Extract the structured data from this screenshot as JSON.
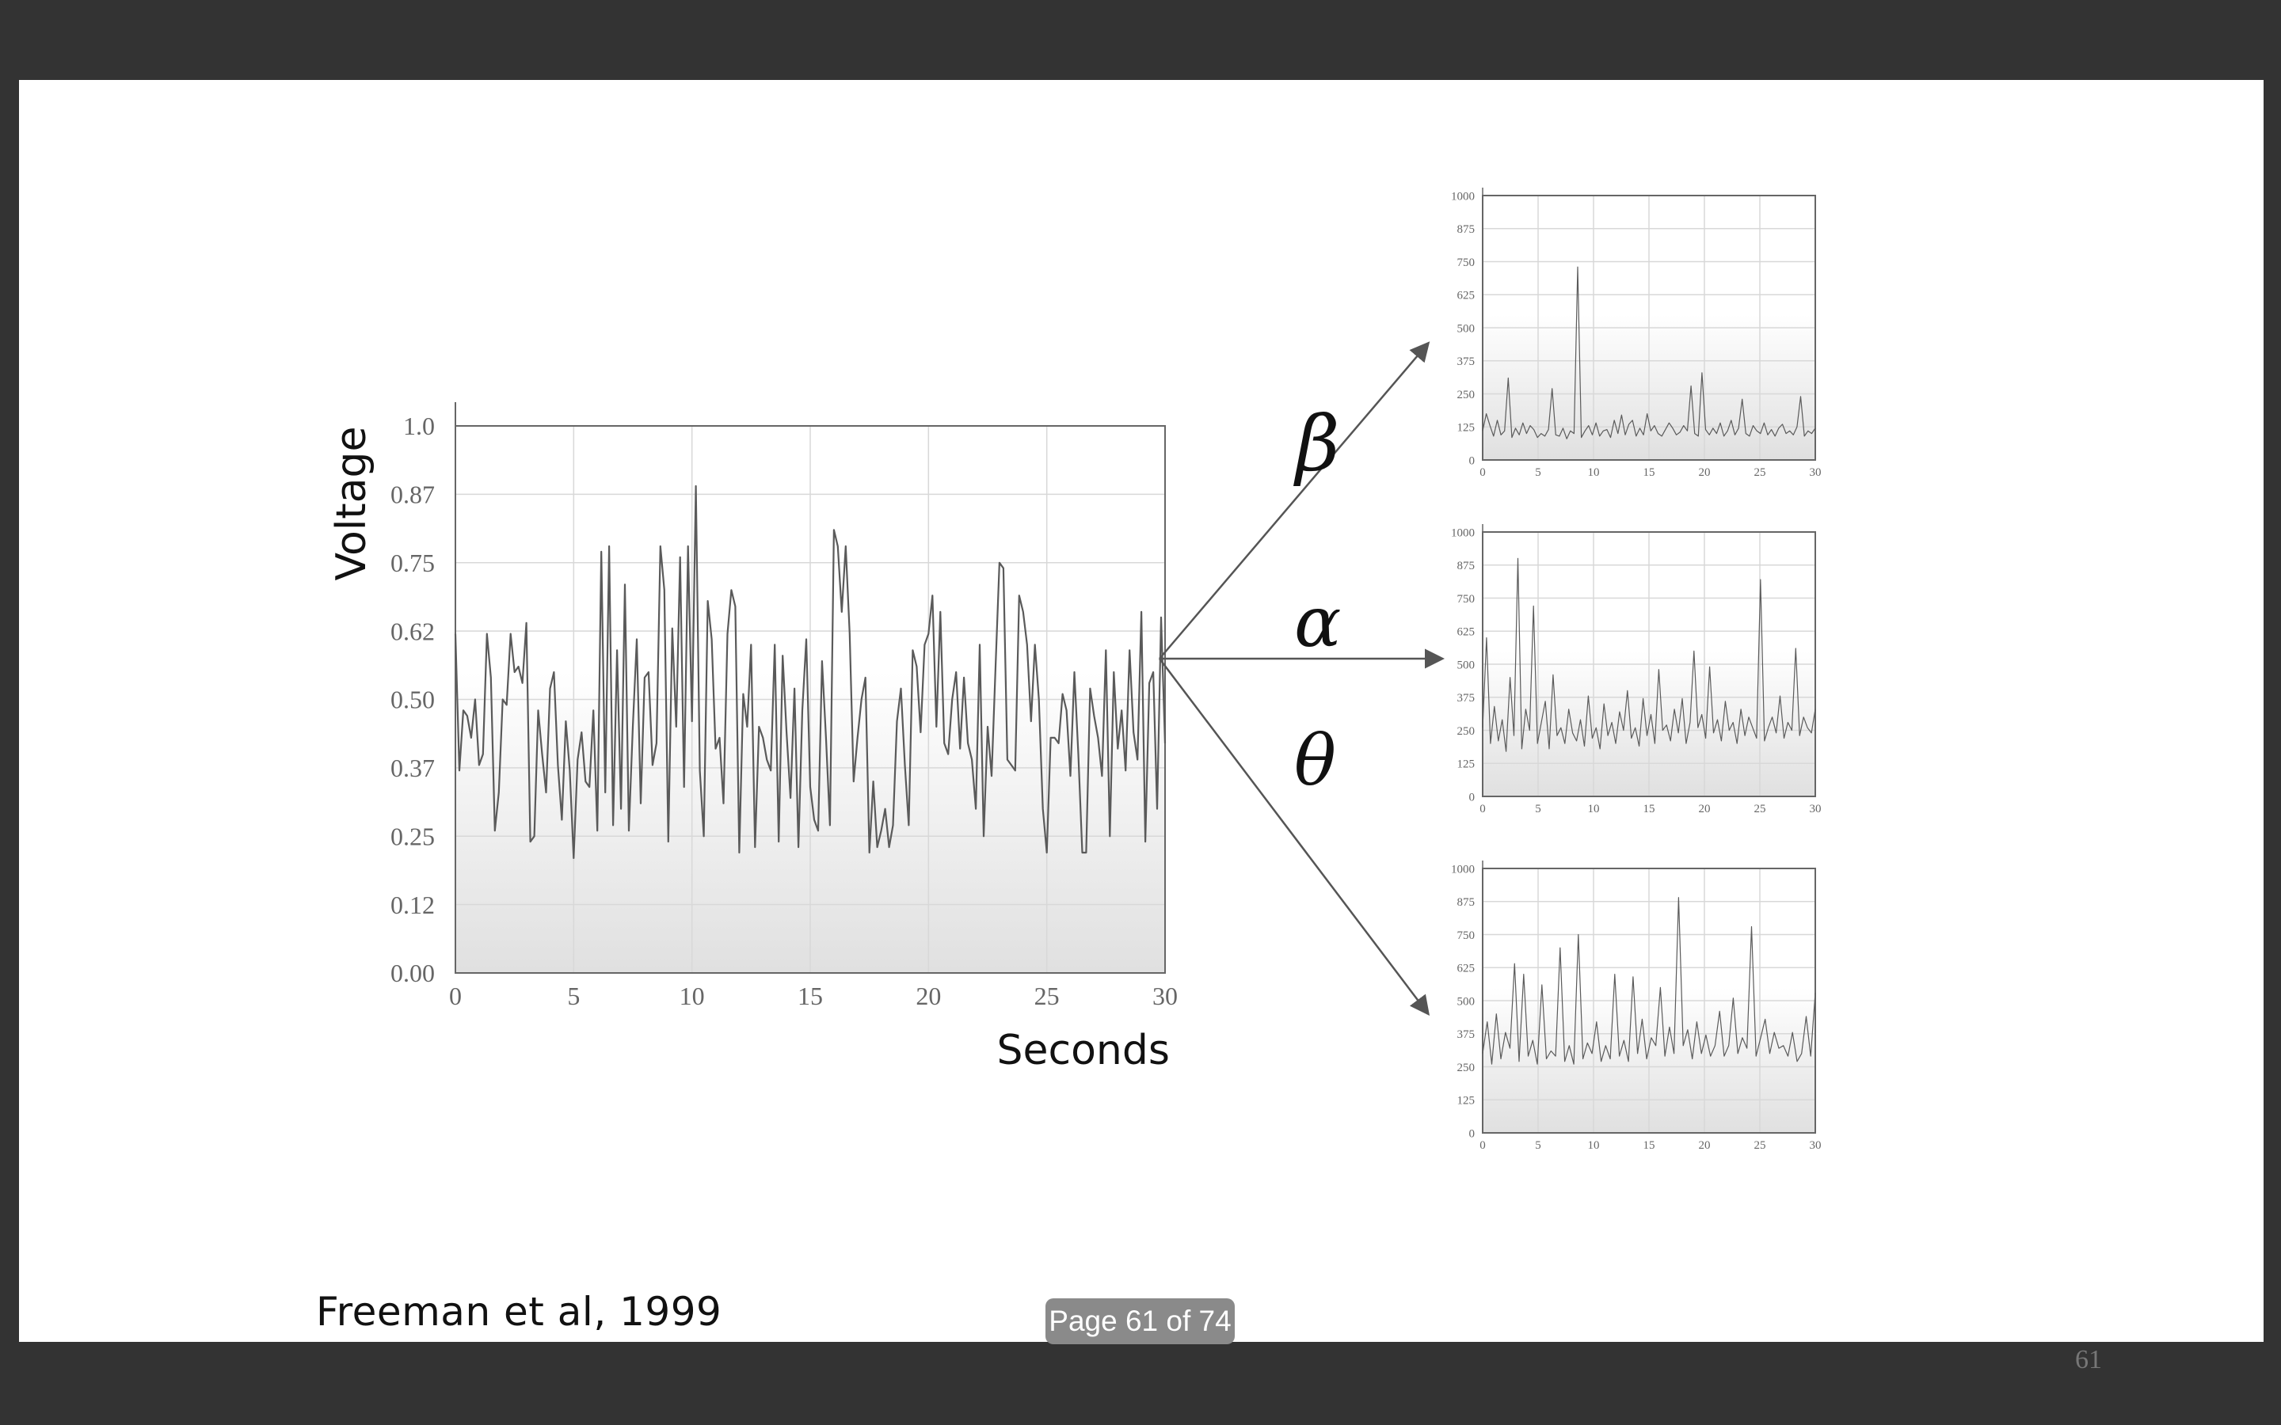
{
  "viewer": {
    "page_indicator": "Page 61 of 74"
  },
  "slide": {
    "citation": "Freeman et al, 1999",
    "page_number": "61",
    "band_labels": [
      "β",
      "α",
      "θ"
    ]
  },
  "colors": {
    "background": "#333333",
    "slide": "#ffffff",
    "line": "#5a5a5a",
    "grid": "#d6d6d6",
    "pill": "#8a8a8a"
  },
  "chart_data": [
    {
      "type": "line",
      "xlabel": "Seconds",
      "ylabel": "Voltage",
      "xlim": [
        0,
        30
      ],
      "ylim": [
        0,
        1.0
      ],
      "x_ticks": [
        "0",
        "5",
        "10",
        "15",
        "20",
        "25",
        "30"
      ],
      "y_ticks": [
        "0.00",
        "0.12",
        "0.25",
        "0.37",
        "0.50",
        "0.62",
        "0.75",
        "0.87",
        "1.0"
      ],
      "grid": true,
      "y": [
        0.62,
        0.37,
        0.48,
        0.47,
        0.43,
        0.5,
        0.38,
        0.4,
        0.62,
        0.54,
        0.26,
        0.33,
        0.5,
        0.49,
        0.62,
        0.55,
        0.56,
        0.53,
        0.64,
        0.24,
        0.25,
        0.48,
        0.4,
        0.33,
        0.52,
        0.55,
        0.38,
        0.28,
        0.46,
        0.37,
        0.21,
        0.39,
        0.44,
        0.35,
        0.34,
        0.48,
        0.26,
        0.77,
        0.33,
        0.78,
        0.27,
        0.59,
        0.3,
        0.71,
        0.26,
        0.45,
        0.61,
        0.31,
        0.54,
        0.55,
        0.38,
        0.42,
        0.78,
        0.7,
        0.24,
        0.63,
        0.45,
        0.76,
        0.34,
        0.78,
        0.46,
        0.89,
        0.37,
        0.25,
        0.68,
        0.61,
        0.41,
        0.43,
        0.31,
        0.62,
        0.7,
        0.67,
        0.22,
        0.51,
        0.45,
        0.6,
        0.23,
        0.45,
        0.43,
        0.39,
        0.37,
        0.6,
        0.24,
        0.58,
        0.44,
        0.32,
        0.52,
        0.23,
        0.48,
        0.61,
        0.34,
        0.28,
        0.26,
        0.57,
        0.43,
        0.27,
        0.81,
        0.78,
        0.66,
        0.78,
        0.62,
        0.35,
        0.43,
        0.5,
        0.54,
        0.22,
        0.35,
        0.23,
        0.26,
        0.3,
        0.23,
        0.27,
        0.46,
        0.52,
        0.38,
        0.27,
        0.59,
        0.56,
        0.44,
        0.6,
        0.62,
        0.69,
        0.45,
        0.66,
        0.42,
        0.4,
        0.5,
        0.55,
        0.41,
        0.54,
        0.42,
        0.39,
        0.3,
        0.6,
        0.25,
        0.45,
        0.36,
        0.56,
        0.75,
        0.74,
        0.39,
        0.38,
        0.37,
        0.69,
        0.66,
        0.6,
        0.46,
        0.6,
        0.5,
        0.3,
        0.22,
        0.43,
        0.43,
        0.42,
        0.51,
        0.48,
        0.36,
        0.55,
        0.4,
        0.22,
        0.22,
        0.52,
        0.47,
        0.43,
        0.36,
        0.59,
        0.25,
        0.55,
        0.41,
        0.48,
        0.37,
        0.59,
        0.44,
        0.39,
        0.66,
        0.24,
        0.53,
        0.55,
        0.3,
        0.65,
        0.42
      ]
    },
    {
      "type": "line",
      "label": "β",
      "xlim": [
        0,
        30
      ],
      "ylim": [
        0,
        1000
      ],
      "x_ticks": [
        "0",
        "5",
        "10",
        "15",
        "20",
        "25",
        "30"
      ],
      "y_ticks": [
        "0",
        "125",
        "250",
        "375",
        "500",
        "625",
        "750",
        "875",
        "1000"
      ],
      "grid": true,
      "y": [
        110,
        175,
        130,
        90,
        150,
        95,
        110,
        310,
        85,
        120,
        95,
        140,
        100,
        130,
        115,
        85,
        100,
        90,
        115,
        270,
        95,
        90,
        120,
        80,
        110,
        100,
        730,
        85,
        110,
        130,
        95,
        140,
        90,
        110,
        115,
        85,
        150,
        100,
        170,
        95,
        135,
        150,
        90,
        120,
        95,
        175,
        110,
        130,
        100,
        90,
        115,
        140,
        120,
        95,
        105,
        130,
        110,
        280,
        100,
        90,
        330,
        115,
        95,
        120,
        100,
        140,
        90,
        110,
        150,
        95,
        120,
        230,
        100,
        90,
        130,
        110,
        100,
        140,
        95,
        115,
        90,
        120,
        135,
        100,
        110,
        95,
        125,
        240,
        90,
        110,
        100,
        120
      ]
    },
    {
      "type": "line",
      "label": "α",
      "xlim": [
        0,
        30
      ],
      "ylim": [
        0,
        1000
      ],
      "x_ticks": [
        "0",
        "5",
        "10",
        "15",
        "20",
        "25",
        "30"
      ],
      "y_ticks": [
        "0",
        "125",
        "250",
        "375",
        "500",
        "625",
        "750",
        "875",
        "1000"
      ],
      "grid": true,
      "y": [
        260,
        600,
        200,
        340,
        210,
        290,
        170,
        450,
        230,
        900,
        180,
        330,
        250,
        720,
        200,
        280,
        360,
        180,
        460,
        230,
        260,
        200,
        330,
        240,
        210,
        290,
        190,
        380,
        220,
        260,
        180,
        350,
        230,
        280,
        200,
        320,
        250,
        400,
        220,
        260,
        190,
        370,
        230,
        310,
        200,
        480,
        250,
        270,
        210,
        330,
        240,
        370,
        200,
        280,
        550,
        260,
        310,
        220,
        490,
        240,
        290,
        210,
        360,
        250,
        280,
        200,
        330,
        230,
        300,
        260,
        220,
        820,
        210,
        260,
        300,
        240,
        380,
        220,
        280,
        250,
        560,
        230,
        300,
        260,
        240,
        330
      ]
    },
    {
      "type": "line",
      "label": "θ",
      "xlim": [
        0,
        30
      ],
      "ylim": [
        0,
        1000
      ],
      "x_ticks": [
        "0",
        "5",
        "10",
        "15",
        "20",
        "25",
        "30"
      ],
      "y_ticks": [
        "0",
        "125",
        "250",
        "375",
        "500",
        "625",
        "750",
        "875",
        "1000"
      ],
      "grid": true,
      "y": [
        300,
        420,
        260,
        450,
        280,
        380,
        320,
        640,
        270,
        600,
        290,
        350,
        260,
        560,
        280,
        310,
        290,
        700,
        270,
        330,
        260,
        750,
        280,
        340,
        300,
        420,
        270,
        330,
        280,
        600,
        290,
        350,
        270,
        590,
        300,
        430,
        280,
        360,
        330,
        550,
        290,
        400,
        300,
        890,
        330,
        390,
        280,
        420,
        300,
        370,
        290,
        330,
        460,
        290,
        330,
        510,
        300,
        360,
        320,
        780,
        290,
        360,
        430,
        300,
        380,
        320,
        330,
        290,
        380,
        270,
        300,
        440,
        290,
        530
      ]
    }
  ]
}
